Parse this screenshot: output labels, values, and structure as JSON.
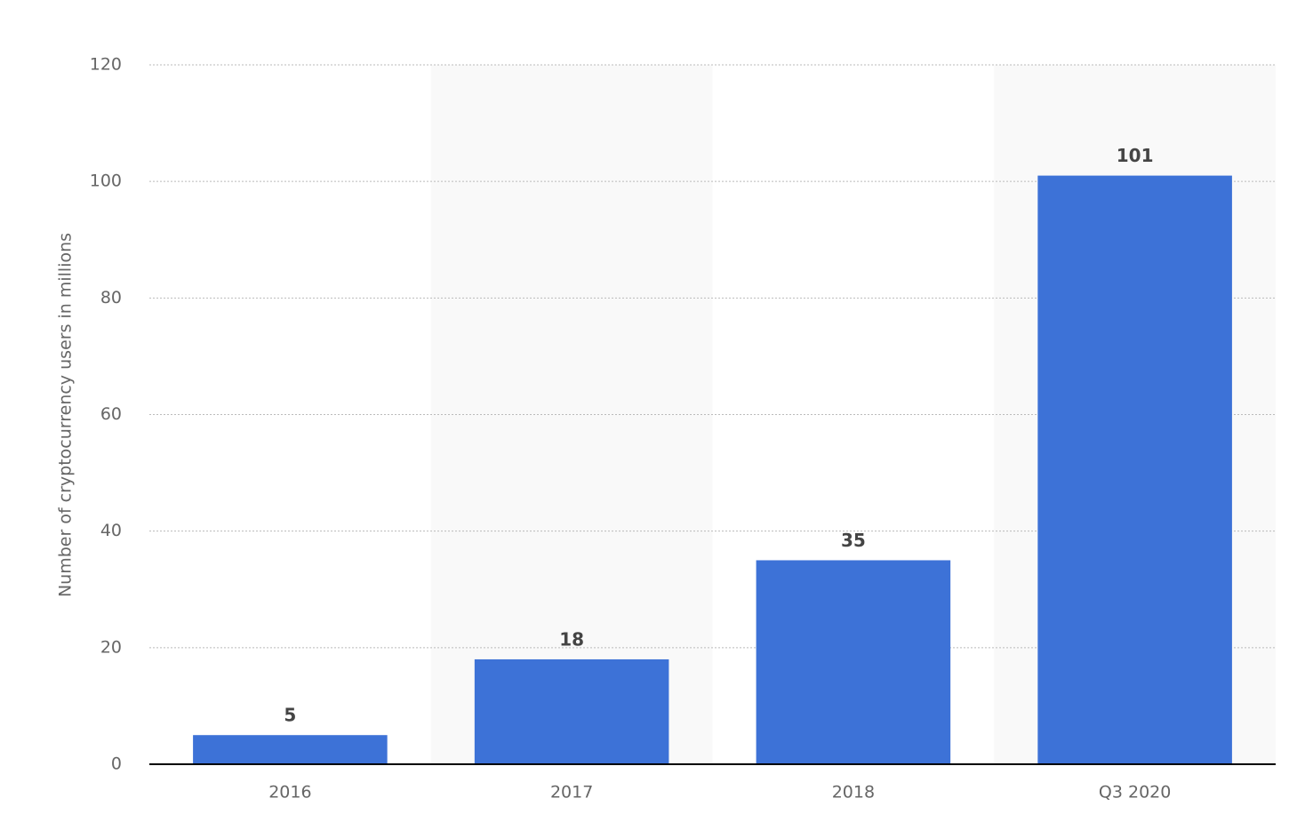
{
  "chart_data": {
    "type": "bar",
    "y_label": "Number of cryptocurrency users in millions",
    "categories": [
      "2016",
      "2017",
      "2018",
      "Q3 2020"
    ],
    "values": [
      5,
      18,
      35,
      101
    ],
    "color": "#3d72d7",
    "ylim": [
      0,
      120
    ],
    "yticks": [
      0,
      20,
      40,
      60,
      80,
      100,
      120
    ],
    "grid": true
  }
}
